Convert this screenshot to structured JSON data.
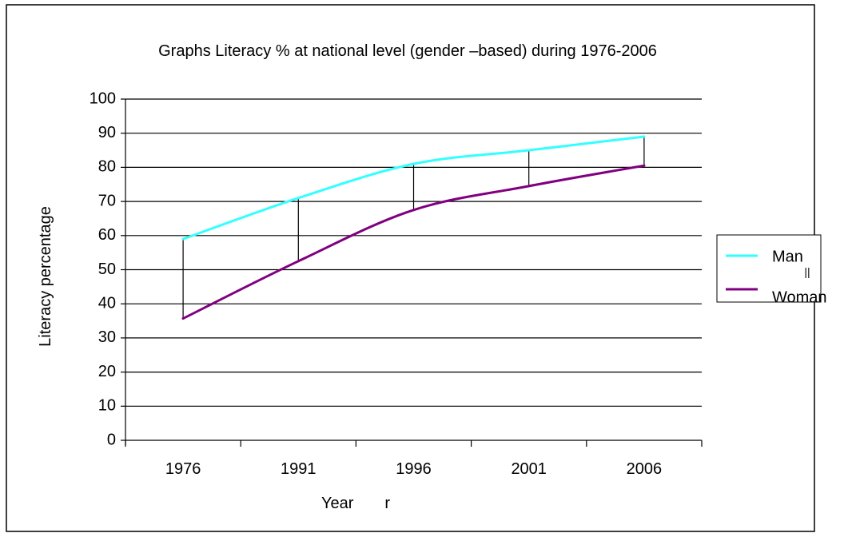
{
  "chart_data": {
    "type": "line",
    "title": "Graphs Literacy % at national level (gender –based) during 1976-2006",
    "xlabel": "Year       r",
    "ylabel": "Literacy percentage",
    "categories": [
      "1976",
      "1991",
      "1996",
      "2001",
      "2006"
    ],
    "ylim": [
      0,
      100
    ],
    "yticks": [
      "0",
      "10",
      "20",
      "30",
      "40",
      "50",
      "60",
      "70",
      "80",
      "90",
      "100"
    ],
    "grid": true,
    "legend_position": "right",
    "series": [
      {
        "name": "Man",
        "color": "#33ffff",
        "values": [
          59,
          71,
          81,
          85,
          89
        ]
      },
      {
        "name": "Woman",
        "color": "#800080",
        "values": [
          35.7,
          52.5,
          67.5,
          74.5,
          80.5
        ]
      }
    ],
    "gap_lines": true,
    "legend_marks": [
      "||"
    ]
  }
}
